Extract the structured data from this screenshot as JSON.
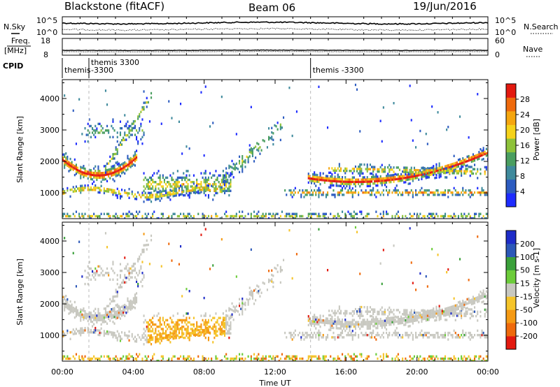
{
  "header": {
    "station": "Blackstone (fitACF)",
    "beam": "Beam 06",
    "date": "19/Jun/2016"
  },
  "noise_panel": {
    "left_label": "N.Sky",
    "right_label": "N.Search",
    "tick_top": "10^5",
    "tick_bottom": "10^0",
    "right_tick_top": "10^5",
    "right_tick_bottom": "10^0"
  },
  "freq_panel": {
    "left_label": "Freq.",
    "left_unit": "[MHz]",
    "right_label": "Nave",
    "left_ticks": [
      "18",
      "8"
    ],
    "right_ticks": [
      "60",
      "0"
    ]
  },
  "cpid": {
    "label": "CPID",
    "segments": [
      {
        "text": "themis",
        "start_hour": 0.0
      },
      {
        "text": "themis 3300",
        "start_hour": 1.5
      },
      {
        "text": "-3300",
        "start_hour": 1.5
      },
      {
        "text": "themis -3300",
        "start_hour": 14.0
      }
    ]
  },
  "chart_data": [
    {
      "type": "heatmap",
      "quantity": "Power",
      "colorbar_label": "Power [dB]",
      "ylabel": "Slant Range [km]",
      "xlabel": "",
      "ylim": [
        180,
        4600
      ],
      "xlim": [
        0,
        24
      ],
      "yticks": [
        1000,
        2000,
        3000,
        4000
      ],
      "colorbar_ticks": [
        "4",
        "8",
        "12",
        "16",
        "20",
        "24",
        "28"
      ],
      "colors": [
        "#1e2cff",
        "#2d5cc0",
        "#3f8a9c",
        "#4a9e60",
        "#8ec23a",
        "#f5d21a",
        "#f5a60f",
        "#ef6a0c",
        "#e3190f"
      ]
    },
    {
      "type": "heatmap",
      "quantity": "Velocity",
      "colorbar_label": "Velocity [m s-1]",
      "ylabel": "Slant Range [km]",
      "xlabel": "Time UT",
      "ylim": [
        180,
        4600
      ],
      "xlim": [
        0,
        24
      ],
      "yticks": [
        1000,
        2000,
        3000,
        4000
      ],
      "xticks": [
        "00:00",
        "04:00",
        "08:00",
        "12:00",
        "16:00",
        "20:00",
        "00:00"
      ],
      "colorbar_ticks": [
        "200",
        "100",
        "50",
        "15",
        "-15",
        "-50",
        "-100",
        "-200"
      ],
      "colors": [
        "#1e2cc8",
        "#2c58b8",
        "#3aa03a",
        "#6ccc3a",
        "#c8c8c0",
        "#f5c42a",
        "#f59a14",
        "#ef6a0c",
        "#e3190f"
      ]
    }
  ]
}
